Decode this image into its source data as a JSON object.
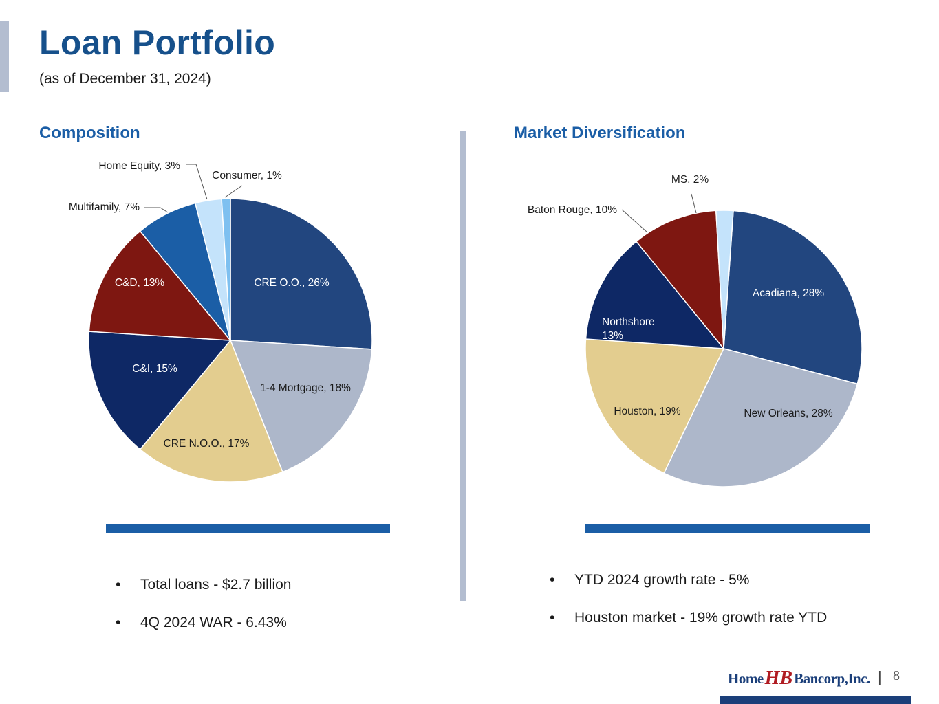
{
  "header": {
    "title": "Loan Portfolio",
    "subtitle": "(as of December 31, 2024)"
  },
  "sections": {
    "composition_title": "Composition",
    "market_title": "Market Diversification"
  },
  "chart_data": [
    {
      "type": "pie",
      "title": "Composition",
      "categories": [
        "CRE O.O.",
        "1-4 Mortgage",
        "CRE N.O.O.",
        "C&I",
        "C&D",
        "Multifamily",
        "Home Equity",
        "Consumer"
      ],
      "values": [
        26,
        18,
        17,
        15,
        13,
        7,
        3,
        1
      ],
      "labels": [
        "CRE O.O., 26%",
        "1-4 Mortgage, 18%",
        "CRE N.O.O., 17%",
        "C&I, 15%",
        "C&D, 13%",
        "Multifamily, 7%",
        "Home Equity, 3%",
        "Consumer, 1%"
      ],
      "colors": [
        "#22467f",
        "#adb7ca",
        "#e3cd8f",
        "#0e2865",
        "#7e1711",
        "#1b5ea6",
        "#c4e3fb",
        "#7ec0f0"
      ],
      "start": "12 o'clock, clockwise"
    },
    {
      "type": "pie",
      "title": "Market Diversification",
      "categories": [
        "Acadiana",
        "New Orleans",
        "Houston",
        "Northshore",
        "Baton Rouge",
        "MS"
      ],
      "values": [
        28,
        28,
        19,
        13,
        10,
        2
      ],
      "labels": [
        "Acadiana, 28%",
        "New Orleans, 28%",
        "Houston, 19%",
        "Northshore 13%",
        "Baton Rouge, 10%",
        "MS, 2%"
      ],
      "colors": [
        "#22467f",
        "#adb7ca",
        "#e3cd8f",
        "#0e2865",
        "#7e1711",
        "#c4e3fb"
      ],
      "start": "just right of 12 o'clock, clockwise"
    }
  ],
  "bullets_left": [
    "Total loans - $2.7 billion",
    "4Q 2024 WAR - 6.43%"
  ],
  "bullets_right": [
    "YTD 2024 growth rate - 5%",
    "Houston market - 19% growth rate YTD"
  ],
  "bullet_symbol": "•",
  "footer": {
    "logo_home": "Home",
    "logo_mark": "HB",
    "logo_bancorp": "Bancorp,Inc.",
    "separator": "|",
    "page_number": "8"
  }
}
